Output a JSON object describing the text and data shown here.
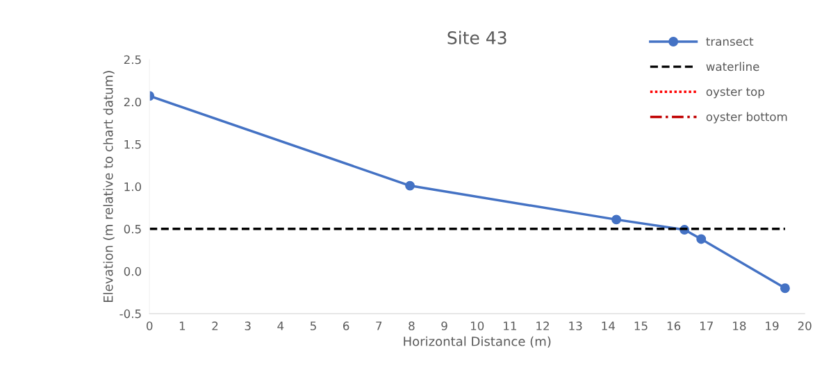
{
  "chart_data": {
    "type": "line",
    "title": "Site 43",
    "xlabel": "Horizontal Distance (m)",
    "ylabel": "Elevation (m relative to chart datum)",
    "series": [
      {
        "name": "transect",
        "color": "#4472c4",
        "marker": "circle",
        "line_style": "solid",
        "x": [
          0,
          7.95,
          14.25,
          16.33,
          16.84,
          19.4
        ],
        "values": [
          2.07,
          1.01,
          0.61,
          0.49,
          0.38,
          -0.2
        ]
      },
      {
        "name": "waterline",
        "color": "#000000",
        "marker": "none",
        "line_style": "dashed",
        "x": [
          0,
          19.4
        ],
        "values": [
          0.5,
          0.5
        ]
      },
      {
        "name": "oyster top",
        "color": "#ff0000",
        "marker": "none",
        "line_style": "dotted"
      },
      {
        "name": "oyster bottom",
        "color": "#c00000",
        "marker": "none",
        "line_style": "dashdot"
      }
    ],
    "xlim": [
      0,
      20
    ],
    "xticks": [
      0,
      1,
      2,
      3,
      4,
      5,
      6,
      7,
      8,
      9,
      10,
      11,
      12,
      13,
      14,
      15,
      16,
      17,
      18,
      19,
      20
    ],
    "ylim": [
      -0.5,
      2.5
    ],
    "yticks": [
      -0.5,
      {
        "value": 0,
        "label": "0.0"
      },
      0.5,
      {
        "value": 1,
        "label": "1.0"
      },
      1.5,
      {
        "value": 2,
        "label": "2.0"
      },
      2.5
    ],
    "grid": false,
    "legend": "top right"
  }
}
